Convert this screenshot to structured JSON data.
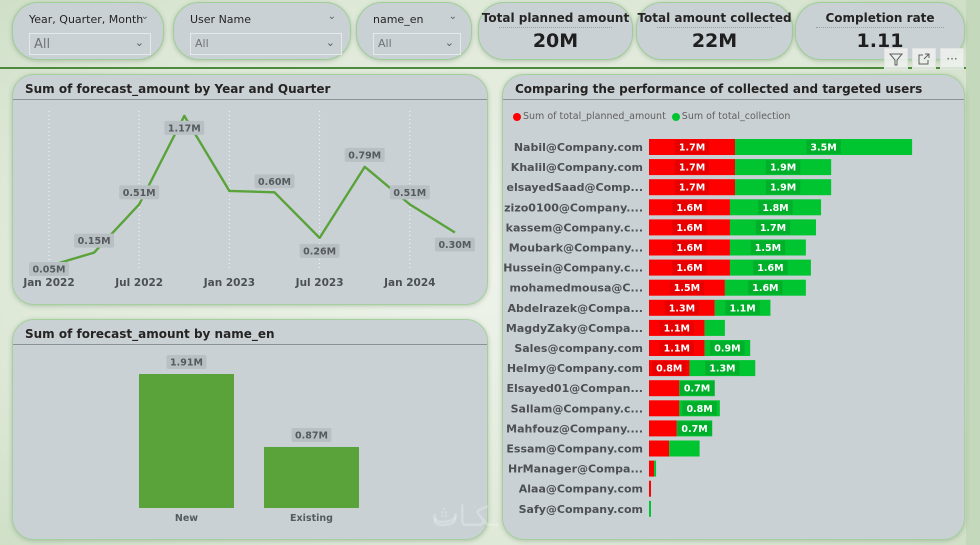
{
  "slicers": [
    {
      "title": "Year, Quarter, Month",
      "value": "All"
    },
    {
      "title": "User Name",
      "value": "All"
    },
    {
      "title": "name_en",
      "value": "All"
    }
  ],
  "cards": [
    {
      "title": "Total planned amount",
      "value": "20M"
    },
    {
      "title": "Total amount collected",
      "value": "22M"
    },
    {
      "title": "Completion rate",
      "value": "1.11"
    }
  ],
  "header_icons": {
    "filter": "filter-icon",
    "focus": "focus-mode-icon",
    "more": "more-options-icon",
    "more_glyph": "···"
  },
  "colors": {
    "line_green": "#5aa23a",
    "bar_green": "#5aa23a",
    "planned_red": "#ff0000",
    "collected_green": "#00c531",
    "panel_bg": "#cad1d5",
    "border_green": "#a3d19c"
  },
  "chart_data": [
    {
      "type": "line",
      "title": "Sum of forecast_amount by Year and Quarter",
      "xlabel": "",
      "ylabel": "",
      "x": [
        "Jan 2022",
        "Apr 2022",
        "Jul 2022",
        "Oct 2022",
        "Jan 2023",
        "Apr 2023",
        "Jul 2023",
        "Oct 2023",
        "Jan 2024",
        "Apr 2024"
      ],
      "tick_labels": [
        "Jan 2022",
        "Jul 2022",
        "Jan 2023",
        "Jul 2023",
        "Jan 2024"
      ],
      "values": [
        0.05,
        0.15,
        0.51,
        1.17,
        0.61,
        0.6,
        0.26,
        0.79,
        0.51,
        0.3
      ],
      "data_labels": [
        "0.05M",
        "0.15M",
        "0.51M",
        "1.17M",
        "",
        "0.60M",
        "0.26M",
        "0.79M",
        "0.51M",
        "0.30M"
      ],
      "unit": "M",
      "ylim": [
        0,
        1.2
      ],
      "grid": "vertical-dotted",
      "legend": "none"
    },
    {
      "type": "bar",
      "title": "Sum of forecast_amount by name_en",
      "categories": [
        "New",
        "Existing"
      ],
      "values": [
        1.91,
        0.87
      ],
      "data_labels": [
        "1.91M",
        "0.87M"
      ],
      "unit": "M",
      "xlabel": "",
      "ylabel": "",
      "ylim": [
        0,
        1.91
      ],
      "legend": "none"
    },
    {
      "type": "bar",
      "orientation": "horizontal-stacked",
      "title": "Comparing the performance of collected and targeted users",
      "legend": "top-left",
      "categories": [
        "Nabil@Company.com",
        "Khalil@Company.com",
        "elsayedSaad@Comp...",
        "zizo0100@Company....",
        "kassem@Company.c...",
        "Moubark@Company...",
        "Hussein@Company.c...",
        "mohamedmousa@C...",
        "Abdelrazek@Compa...",
        "MagdyZaky@Compa...",
        "Sales@company.com",
        "Helmy@Company.com",
        "Elsayed01@Compan...",
        "Sallam@Company.c...",
        "Mahfouz@Company....",
        "Essam@Company.com",
        "HrManager@Compa...",
        "Alaa@Company.com",
        "Safy@Company.com"
      ],
      "series": [
        {
          "name": "Sum of total_planned_amount",
          "color": "#ff0000",
          "values": [
            1.7,
            1.7,
            1.7,
            1.6,
            1.6,
            1.6,
            1.6,
            1.5,
            1.3,
            1.1,
            1.1,
            0.8,
            0.6,
            0.6,
            0.55,
            0.4,
            0.1,
            0.03,
            0.0
          ],
          "labels": [
            "1.7M",
            "1.7M",
            "1.7M",
            "1.6M",
            "1.6M",
            "1.6M",
            "1.6M",
            "1.5M",
            "1.3M",
            "1.1M",
            "1.1M",
            "0.8M",
            "",
            "",
            "",
            "",
            "",
            "",
            ""
          ]
        },
        {
          "name": "Sum of total_collection",
          "color": "#00c531",
          "values": [
            3.5,
            1.9,
            1.9,
            1.8,
            1.7,
            1.5,
            1.6,
            1.6,
            1.1,
            0.4,
            0.9,
            1.3,
            0.7,
            0.8,
            0.7,
            0.6,
            0.02,
            0.0,
            0.03
          ],
          "labels": [
            "3.5M",
            "1.9M",
            "1.9M",
            "1.8M",
            "1.7M",
            "1.5M",
            "1.6M",
            "1.6M",
            "1.1M",
            "",
            "0.9M",
            "1.3M",
            "0.7M",
            "0.8M",
            "0.7M",
            "",
            "",
            "",
            ""
          ]
        }
      ],
      "xlim": [
        0,
        5.2
      ]
    }
  ]
}
